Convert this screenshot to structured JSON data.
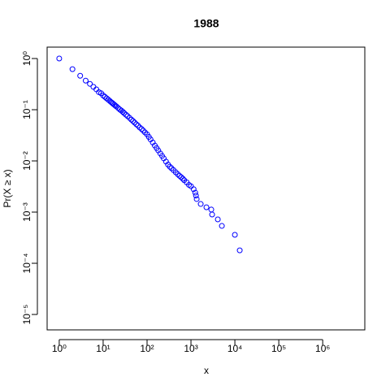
{
  "chart_data": {
    "type": "scatter",
    "title": "1988",
    "xlabel": "x",
    "ylabel": "Pr(X ≥ x)",
    "xlog": true,
    "ylog": true,
    "color": "#0000ff",
    "xlim": [
      0.53,
      9100000
    ],
    "ylim": [
      5e-06,
      1.67
    ],
    "xticks": [
      {
        "value": 1,
        "label": "10⁰"
      },
      {
        "value": 10,
        "label": "10¹"
      },
      {
        "value": 100,
        "label": "10²"
      },
      {
        "value": 1000,
        "label": "10³"
      },
      {
        "value": 10000,
        "label": "10⁴"
      },
      {
        "value": 100000,
        "label": "10⁵"
      },
      {
        "value": 1000000,
        "label": "10⁶"
      }
    ],
    "yticks": [
      {
        "value": 1,
        "label": "10⁰"
      },
      {
        "value": 0.1,
        "label": "10⁻¹"
      },
      {
        "value": 0.01,
        "label": "10⁻²"
      },
      {
        "value": 0.001,
        "label": "10⁻³"
      },
      {
        "value": 0.0001,
        "label": "10⁻⁴"
      },
      {
        "value": 1e-05,
        "label": "10⁻⁵"
      }
    ],
    "x": [
      1,
      2,
      3,
      4,
      5,
      6,
      7,
      8,
      9,
      10,
      11,
      12,
      13,
      14,
      15,
      16,
      17,
      18,
      19,
      20,
      22,
      24,
      26,
      28,
      30,
      33,
      36,
      40,
      44,
      48,
      52,
      57,
      62,
      68,
      75,
      82,
      90,
      100,
      110,
      120,
      135,
      150,
      165,
      180,
      200,
      220,
      240,
      270,
      300,
      330,
      360,
      400,
      450,
      500,
      550,
      600,
      650,
      700,
      800,
      900,
      1000,
      1150,
      1250,
      1300,
      1350,
      1667,
      2248,
      2903,
      3030,
      4086,
      5057,
      10000,
      12900
    ],
    "values": [
      1,
      0.62,
      0.46,
      0.37,
      0.32,
      0.28,
      0.25,
      0.22,
      0.21,
      0.19,
      0.178,
      0.167,
      0.158,
      0.15,
      0.142,
      0.136,
      0.13,
      0.125,
      0.12,
      0.116,
      0.108,
      0.101,
      0.096,
      0.091,
      0.086,
      0.08,
      0.075,
      0.069,
      0.064,
      0.06,
      0.056,
      0.052,
      0.049,
      0.045,
      0.042,
      0.039,
      0.036,
      0.033,
      0.0294,
      0.0264,
      0.0229,
      0.02,
      0.0178,
      0.016,
      0.014,
      0.0125,
      0.0112,
      0.0097,
      0.0085,
      0.0077,
      0.0072,
      0.0066,
      0.006,
      0.0055,
      0.0051,
      0.0048,
      0.0045,
      0.0042,
      0.0038,
      0.0034,
      0.0032,
      0.0028,
      0.0024,
      0.0021,
      0.0018,
      0.00144,
      0.00124,
      0.00112,
      0.000896,
      0.00072,
      0.000537,
      0.00036,
      0.000179
    ]
  }
}
